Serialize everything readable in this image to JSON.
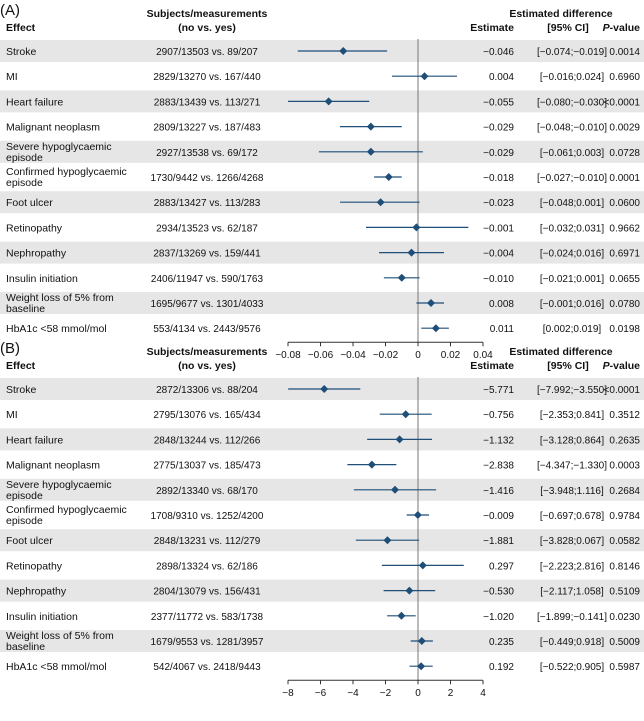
{
  "chart_data": [
    {
      "type": "forest",
      "panel_label": "(A)",
      "headers": {
        "effect": "Effect",
        "subjects_line1": "Subjects/measurements",
        "subjects_line2": "(no vs. yes)",
        "diff_title": "Estimated difference",
        "estimate": "Estimate",
        "ci": "[95% CI]",
        "pvalue_italic": "P",
        "pvalue_rest": "-value"
      },
      "xlim": [
        -0.08,
        0.04
      ],
      "xticks": [
        "−0.08",
        "−0.06",
        "−0.04",
        "−0.02",
        "0",
        "0.02",
        "0.04"
      ],
      "xtick_values": [
        -0.08,
        -0.06,
        -0.04,
        -0.02,
        0,
        0.02,
        0.04
      ],
      "rows": [
        {
          "effect": [
            "Stroke"
          ],
          "counts": "2907/13503 vs. 89/207",
          "estimate": -0.046,
          "lower": -0.074,
          "upper": -0.019,
          "estimate_text": "−0.046",
          "ci_text": "[−0.074;−0.019]",
          "p_text": "0.0014"
        },
        {
          "effect": [
            "MI"
          ],
          "counts": "2829/13270 vs. 167/440",
          "estimate": 0.004,
          "lower": -0.016,
          "upper": 0.024,
          "estimate_text": "0.004",
          "ci_text": "[−0.016;0.024]",
          "p_text": "0.6960"
        },
        {
          "effect": [
            "Heart failure"
          ],
          "counts": "2883/13439 vs. 113/271",
          "estimate": -0.055,
          "lower": -0.08,
          "upper": -0.03,
          "estimate_text": "−0.055",
          "ci_text": "[−0.080;−0.030]",
          "p_text": "<0.0001"
        },
        {
          "effect": [
            "Malignant neoplasm"
          ],
          "counts": "2809/13227 vs. 187/483",
          "estimate": -0.029,
          "lower": -0.048,
          "upper": -0.01,
          "estimate_text": "−0.029",
          "ci_text": "[−0.048;−0.010]",
          "p_text": "0.0029"
        },
        {
          "effect": [
            "Severe hypoglycaemic",
            "episode"
          ],
          "counts": "2927/13538 vs. 69/172",
          "estimate": -0.029,
          "lower": -0.061,
          "upper": 0.003,
          "estimate_text": "−0.029",
          "ci_text": "[−0.061;0.003]",
          "p_text": "0.0728"
        },
        {
          "effect": [
            "Confirmed hypoglycaemic",
            "episode"
          ],
          "counts": "1730/9442 vs. 1266/4268",
          "estimate": -0.018,
          "lower": -0.027,
          "upper": -0.01,
          "estimate_text": "−0.018",
          "ci_text": "[−0.027;−0.010]",
          "p_text": "0.0001"
        },
        {
          "effect": [
            "Foot ulcer"
          ],
          "counts": "2883/13427 vs. 113/283",
          "estimate": -0.023,
          "lower": -0.048,
          "upper": 0.001,
          "estimate_text": "−0.023",
          "ci_text": "[−0.048;0.001]",
          "p_text": "0.0600"
        },
        {
          "effect": [
            "Retinopathy"
          ],
          "counts": "2934/13523 vs. 62/187",
          "estimate": -0.001,
          "lower": -0.032,
          "upper": 0.031,
          "estimate_text": "−0.001",
          "ci_text": "[−0.032;0.031]",
          "p_text": "0.9662"
        },
        {
          "effect": [
            "Nephropathy"
          ],
          "counts": "2837/13269 vs. 159/441",
          "estimate": -0.004,
          "lower": -0.024,
          "upper": 0.016,
          "estimate_text": "−0.004",
          "ci_text": "[−0.024;0.016]",
          "p_text": "0.6971"
        },
        {
          "effect": [
            "Insulin initiation"
          ],
          "counts": "2406/11947 vs. 590/1763",
          "estimate": -0.01,
          "lower": -0.021,
          "upper": 0.001,
          "estimate_text": "−0.010",
          "ci_text": "[−0.021;0.001]",
          "p_text": "0.0655"
        },
        {
          "effect": [
            "Weight loss of 5% from",
            "baseline"
          ],
          "counts": "1695/9677 vs. 1301/4033",
          "estimate": 0.008,
          "lower": -0.001,
          "upper": 0.016,
          "estimate_text": "0.008",
          "ci_text": "[−0.001;0.016]",
          "p_text": "0.0780"
        },
        {
          "effect": [
            "HbA1c <58 mmol/mol"
          ],
          "counts": "553/4134 vs. 2443/9576",
          "estimate": 0.011,
          "lower": 0.002,
          "upper": 0.019,
          "estimate_text": "0.011",
          "ci_text": "[0.002;0.019]",
          "p_text": "0.0198"
        }
      ]
    },
    {
      "type": "forest",
      "panel_label": "(B)",
      "headers": {
        "effect": "Effect",
        "subjects_line1": "Subjects/measurements",
        "subjects_line2": "(no vs. yes)",
        "diff_title": "Estimated difference",
        "estimate": "Estimate",
        "ci": "[95% CI]",
        "pvalue_italic": "P",
        "pvalue_rest": "-value"
      },
      "xlim": [
        -8,
        4
      ],
      "xticks": [
        "−8",
        "−6",
        "−4",
        "−2",
        "0",
        "2",
        "4"
      ],
      "xtick_values": [
        -8,
        -6,
        -4,
        -2,
        0,
        2,
        4
      ],
      "rows": [
        {
          "effect": [
            "Stroke"
          ],
          "counts": "2872/13306 vs. 88/204",
          "estimate": -5.771,
          "lower": -7.992,
          "upper": -3.55,
          "estimate_text": "−5.771",
          "ci_text": "[−7.992;−3.550]",
          "p_text": "<0.0001"
        },
        {
          "effect": [
            "MI"
          ],
          "counts": "2795/13076 vs. 165/434",
          "estimate": -0.756,
          "lower": -2.353,
          "upper": 0.841,
          "estimate_text": "−0.756",
          "ci_text": "[−2.353;0.841]",
          "p_text": "0.3512"
        },
        {
          "effect": [
            "Heart failure"
          ],
          "counts": "2848/13244 vs. 112/266",
          "estimate": -1.132,
          "lower": -3.128,
          "upper": 0.864,
          "estimate_text": "−1.132",
          "ci_text": "[−3.128;0.864]",
          "p_text": "0.2635"
        },
        {
          "effect": [
            "Malignant neoplasm"
          ],
          "counts": "2775/13037 vs. 185/473",
          "estimate": -2.838,
          "lower": -4.347,
          "upper": -1.33,
          "estimate_text": "−2.838",
          "ci_text": "[−4.347;−1.330]",
          "p_text": "0.0003"
        },
        {
          "effect": [
            "Severe hypoglycaemic",
            "episode"
          ],
          "counts": "2892/13340 vs. 68/170",
          "estimate": -1.416,
          "lower": -3.948,
          "upper": 1.116,
          "estimate_text": "−1.416",
          "ci_text": "[−3.948;1.116]",
          "p_text": "0.2684"
        },
        {
          "effect": [
            "Confirmed hypoglycaemic",
            "episode"
          ],
          "counts": "1708/9310 vs. 1252/4200",
          "estimate": -0.009,
          "lower": -0.697,
          "upper": 0.678,
          "estimate_text": "−0.009",
          "ci_text": "[−0.697;0.678]",
          "p_text": "0.9784"
        },
        {
          "effect": [
            "Foot ulcer"
          ],
          "counts": "2848/13231 vs. 112/279",
          "estimate": -1.881,
          "lower": -3.828,
          "upper": 0.067,
          "estimate_text": "−1.881",
          "ci_text": "[−3.828;0.067]",
          "p_text": "0.0582"
        },
        {
          "effect": [
            "Retinopathy"
          ],
          "counts": "2898/13324 vs. 62/186",
          "estimate": 0.297,
          "lower": -2.223,
          "upper": 2.816,
          "estimate_text": "0.297",
          "ci_text": "[−2.223;2.816]",
          "p_text": "0.8146"
        },
        {
          "effect": [
            "Nephropathy"
          ],
          "counts": "2804/13079 vs. 156/431",
          "estimate": -0.53,
          "lower": -2.117,
          "upper": 1.058,
          "estimate_text": "−0.530",
          "ci_text": "[−2.117;1.058]",
          "p_text": "0.5109"
        },
        {
          "effect": [
            "Insulin initiation"
          ],
          "counts": "2377/11772 vs. 583/1738",
          "estimate": -1.02,
          "lower": -1.899,
          "upper": -0.141,
          "estimate_text": "−1.020",
          "ci_text": "[−1.899;−0.141]",
          "p_text": "0.0230"
        },
        {
          "effect": [
            "Weight loss of 5% from",
            "baseline"
          ],
          "counts": "1679/9553 vs. 1281/3957",
          "estimate": 0.235,
          "lower": -0.449,
          "upper": 0.918,
          "estimate_text": "0.235",
          "ci_text": "[−0.449;0.918]",
          "p_text": "0.5009"
        },
        {
          "effect": [
            "HbA1c <58 mmol/mol"
          ],
          "counts": "542/4067 vs. 2418/9443",
          "estimate": 0.192,
          "lower": -0.522,
          "upper": 0.905,
          "estimate_text": "0.192",
          "ci_text": "[−0.522;0.905]",
          "p_text": "0.5987"
        }
      ]
    }
  ],
  "colors": {
    "marker": "#1f4e79",
    "stripe": "#e6e6e6",
    "axis": "#333333",
    "text": "#111111"
  }
}
